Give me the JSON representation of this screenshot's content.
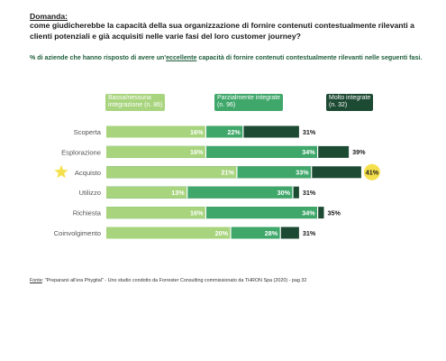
{
  "header": {
    "question_label": "Domanda:",
    "question_text": "come giudicherebbe la capacità della sua organizzazione di fornire contenuti contestualmente rilevanti a clienti potenziali e già acquisiti nelle varie fasi del loro customer journey?",
    "subtitle_before": "% di aziende che hanno risposto di avere un'",
    "subtitle_em": "eccellente",
    "subtitle_after": " capacità di fornire contenuti contestualmente rilevanti nelle seguenti fasi."
  },
  "legend": {
    "items": [
      {
        "line1": "Bassa/nessuna",
        "line2": "integrazione (n. 86)",
        "color": "#a8d47e"
      },
      {
        "line1": "Parzialmente integrate",
        "line2": "(n. 96)",
        "color": "#3fa76a"
      },
      {
        "line1": "Molto integrate",
        "line2": "(n. 32)",
        "color": "#1d4a33"
      }
    ]
  },
  "chart_data": {
    "type": "bar",
    "stacked": "overlapping",
    "categories": [
      "Scoperta",
      "Esplorazione",
      "Acquisto",
      "Utilizzo",
      "Richiesta",
      "Coinvolgimento"
    ],
    "highlight_category": "Acquisto",
    "highlight_icon": "star-icon",
    "series": [
      {
        "name": "Bassa/nessuna integrazione (n. 86)",
        "values": [
          16,
          16,
          21,
          13,
          16,
          20
        ],
        "labels": [
          "16%",
          "16%",
          "21%",
          "13%",
          "16%",
          "20%"
        ]
      },
      {
        "name": "Parzialmente integrate (n. 96)",
        "values": [
          22,
          34,
          33,
          30,
          34,
          28
        ],
        "labels": [
          "22%",
          "34%",
          "33%",
          "30%",
          "34%",
          "28%"
        ]
      },
      {
        "name": "Molto integrate (n. 32)",
        "values": [
          31,
          39,
          41,
          31,
          35,
          31
        ],
        "labels": [
          "31%",
          "39%",
          "41%",
          "31%",
          "35%",
          "31%"
        ]
      }
    ],
    "colors": {
      "low": "#a8d47e",
      "mid": "#3fa76a",
      "high": "#1d4a33",
      "highlight": "#f4e04d",
      "gap": "#ffffff",
      "category_text": "#555555"
    }
  },
  "footer": {
    "source_label": "Fonte",
    "source_text": ": \"Prepararsi all'era Phygital\" - Uno studio condotto da Forrester Consulting commissionato da THRON Spa (2020) - pag 32"
  }
}
